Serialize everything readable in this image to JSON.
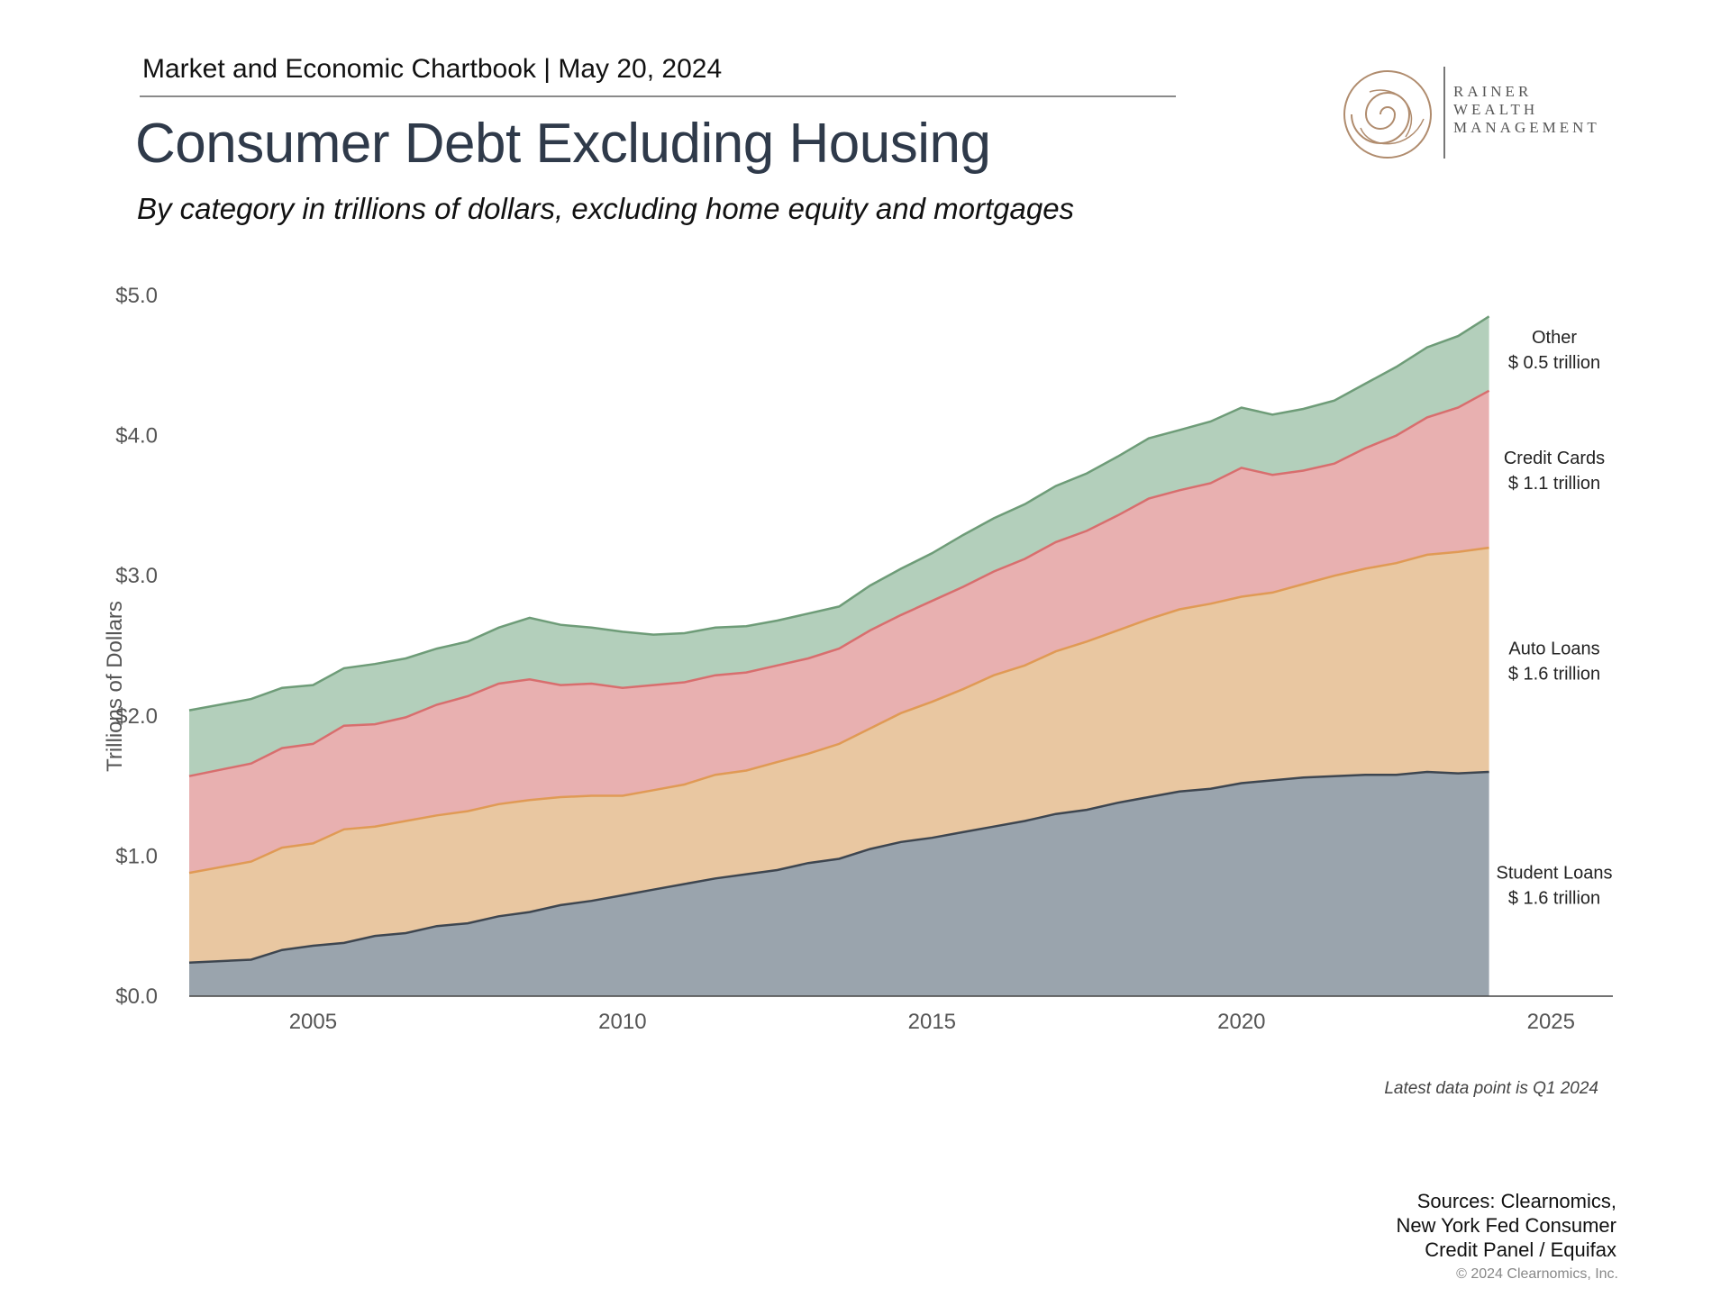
{
  "header": {
    "chartbook": "Market and Economic Chartbook | May 20, 2024",
    "title": "Consumer Debt Excluding Housing",
    "subtitle": "By category in trillions of dollars, excluding home equity and mortgages"
  },
  "logo": {
    "line1": "RAINER",
    "line2": "WEALTH",
    "line3": "MANAGEMENT",
    "color": "#b08c6e"
  },
  "footer": {
    "note": "Latest data point is Q1 2024",
    "sources_line1": "Sources: Clearnomics,",
    "sources_line2": "New York Fed Consumer",
    "sources_line3": "Credit Panel / Equifax",
    "copyright": "© 2024 Clearnomics, Inc."
  },
  "chart_data": {
    "type": "area",
    "stacked": true,
    "ylabel": "Trillions of Dollars",
    "xlim": [
      2003.0,
      2026.0
    ],
    "ylim": [
      0,
      5.0
    ],
    "xticks": [
      2005,
      2010,
      2015,
      2020,
      2025
    ],
    "yticks": [
      {
        "value": 0,
        "label": "$0.0"
      },
      {
        "value": 1,
        "label": "$1.0"
      },
      {
        "value": 2,
        "label": "$2.0"
      },
      {
        "value": 3,
        "label": "$3.0"
      },
      {
        "value": 4,
        "label": "$4.0"
      },
      {
        "value": 5,
        "label": "$5.0"
      }
    ],
    "grid": false,
    "x": [
      2003.0,
      2004.0,
      2004.5,
      2005.0,
      2005.5,
      2006.0,
      2006.5,
      2007.0,
      2007.5,
      2008.0,
      2008.5,
      2009.0,
      2009.5,
      2010.0,
      2010.5,
      2011.0,
      2011.5,
      2012.0,
      2012.5,
      2013.0,
      2013.5,
      2014.0,
      2014.5,
      2015.0,
      2015.5,
      2016.0,
      2016.5,
      2017.0,
      2017.5,
      2018.0,
      2018.5,
      2019.0,
      2019.5,
      2020.0,
      2020.5,
      2021.0,
      2021.5,
      2022.0,
      2022.5,
      2023.0,
      2023.5,
      2024.0
    ],
    "series": [
      {
        "name": "Student Loans",
        "color": "#9aa4ad",
        "line": "#3e4650",
        "values": [
          0.24,
          0.26,
          0.33,
          0.36,
          0.38,
          0.43,
          0.45,
          0.5,
          0.52,
          0.57,
          0.6,
          0.65,
          0.68,
          0.72,
          0.76,
          0.8,
          0.84,
          0.87,
          0.9,
          0.95,
          0.98,
          1.05,
          1.1,
          1.13,
          1.17,
          1.21,
          1.25,
          1.3,
          1.33,
          1.38,
          1.42,
          1.46,
          1.48,
          1.52,
          1.54,
          1.56,
          1.57,
          1.58,
          1.58,
          1.6,
          1.59,
          1.6
        ]
      },
      {
        "name": "Auto Loans",
        "color": "#e9c7a1",
        "line": "#e09a55",
        "values": [
          0.64,
          0.7,
          0.73,
          0.73,
          0.81,
          0.78,
          0.8,
          0.79,
          0.8,
          0.8,
          0.8,
          0.77,
          0.75,
          0.71,
          0.71,
          0.71,
          0.74,
          0.74,
          0.77,
          0.78,
          0.82,
          0.86,
          0.92,
          0.97,
          1.02,
          1.08,
          1.11,
          1.16,
          1.2,
          1.23,
          1.27,
          1.3,
          1.32,
          1.33,
          1.34,
          1.38,
          1.43,
          1.47,
          1.51,
          1.55,
          1.58,
          1.6
        ]
      },
      {
        "name": "Credit Cards",
        "color": "#e8b0b0",
        "line": "#d86e6e",
        "values": [
          0.69,
          0.7,
          0.71,
          0.71,
          0.74,
          0.73,
          0.74,
          0.79,
          0.82,
          0.86,
          0.86,
          0.8,
          0.8,
          0.77,
          0.75,
          0.73,
          0.71,
          0.7,
          0.69,
          0.68,
          0.68,
          0.7,
          0.7,
          0.72,
          0.73,
          0.74,
          0.76,
          0.78,
          0.79,
          0.82,
          0.86,
          0.85,
          0.86,
          0.92,
          0.84,
          0.81,
          0.8,
          0.86,
          0.91,
          0.98,
          1.03,
          1.12
        ]
      },
      {
        "name": "Other",
        "color": "#b3cfbb",
        "line": "#6e9c78",
        "values": [
          0.47,
          0.46,
          0.43,
          0.42,
          0.41,
          0.43,
          0.42,
          0.4,
          0.39,
          0.4,
          0.44,
          0.43,
          0.4,
          0.4,
          0.36,
          0.35,
          0.34,
          0.33,
          0.32,
          0.32,
          0.3,
          0.32,
          0.33,
          0.34,
          0.37,
          0.38,
          0.39,
          0.4,
          0.41,
          0.42,
          0.43,
          0.43,
          0.44,
          0.43,
          0.43,
          0.44,
          0.45,
          0.46,
          0.49,
          0.5,
          0.51,
          0.53
        ]
      }
    ],
    "end_labels": [
      {
        "series": "Other",
        "name": "Other",
        "value": "$ 0.5 trillion"
      },
      {
        "series": "Credit Cards",
        "name": "Credit Cards",
        "value": "$ 1.1 trillion"
      },
      {
        "series": "Auto Loans",
        "name": "Auto Loans",
        "value": "$ 1.6 trillion"
      },
      {
        "series": "Student Loans",
        "name": "Student Loans",
        "value": "$ 1.6 trillion"
      }
    ]
  }
}
